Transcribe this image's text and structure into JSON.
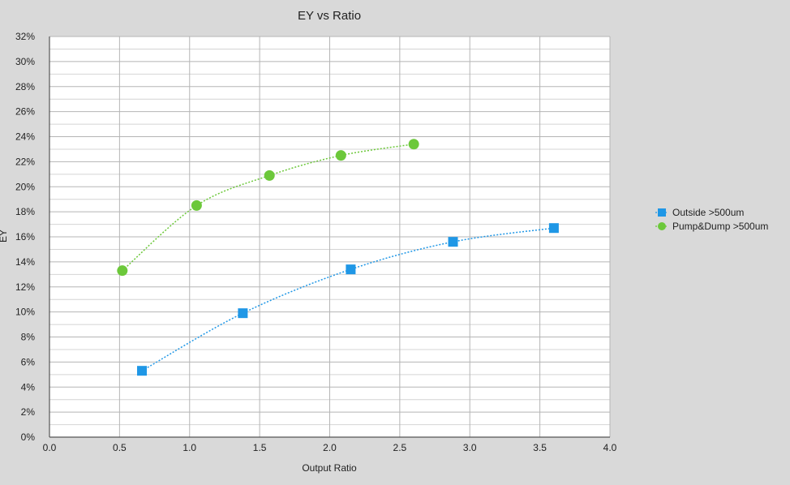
{
  "chart_data": {
    "type": "scatter",
    "title": "EY vs Ratio",
    "xlabel": "Output Ratio",
    "ylabel": "EY",
    "xlim": [
      0,
      4
    ],
    "ylim": [
      0,
      32
    ],
    "x_ticks": [
      "0.0",
      "0.5",
      "1.0",
      "1.5",
      "2.0",
      "2.5",
      "3.0",
      "3.5",
      "4.0"
    ],
    "y_ticks": [
      "0%",
      "2%",
      "4%",
      "6%",
      "8%",
      "10%",
      "12%",
      "14%",
      "16%",
      "18%",
      "20%",
      "22%",
      "24%",
      "26%",
      "28%",
      "30%",
      "32%"
    ],
    "grid": true,
    "legend_position": "right",
    "series": [
      {
        "name": "Outside >500um",
        "marker": "square",
        "color": "#1f97e6",
        "line_style": "dotted",
        "x": [
          0.66,
          1.38,
          2.15,
          2.88,
          3.6
        ],
        "y": [
          5.3,
          9.9,
          13.4,
          15.6,
          16.7
        ]
      },
      {
        "name": "Pump&Dump >500um",
        "marker": "circle",
        "color": "#6cc83a",
        "line_style": "dotted",
        "x": [
          0.52,
          1.05,
          1.57,
          2.08,
          2.6
        ],
        "y": [
          13.3,
          18.5,
          20.9,
          22.5,
          23.4
        ]
      }
    ]
  }
}
